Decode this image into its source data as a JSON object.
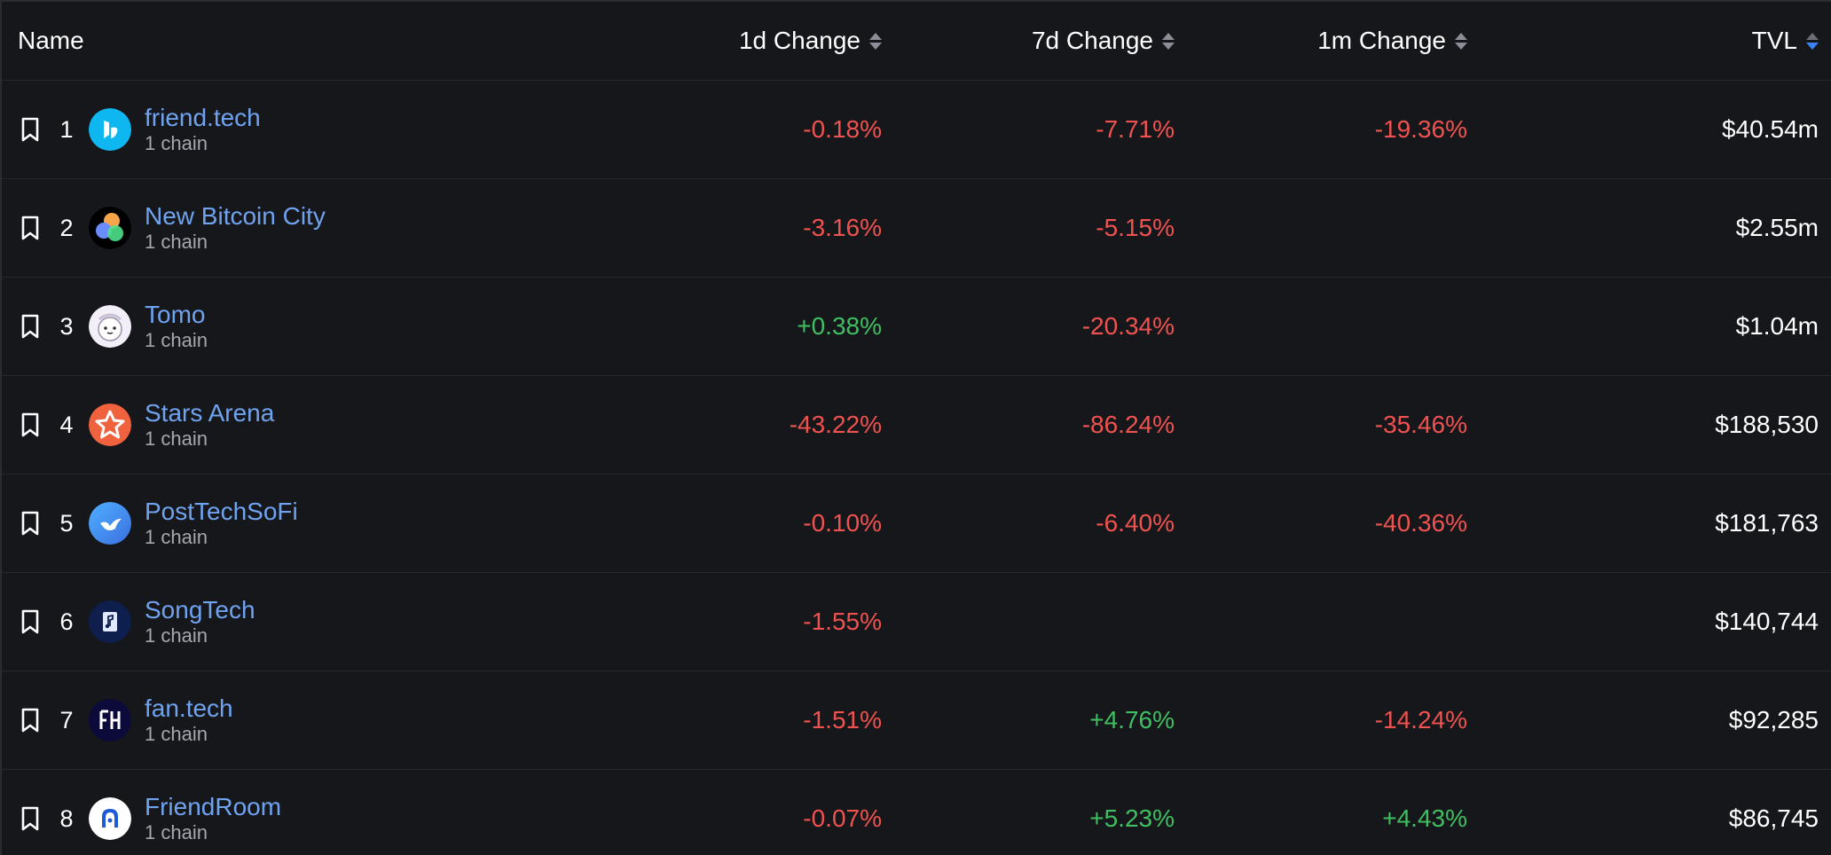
{
  "header": {
    "name": "Name",
    "change_1d": "1d Change",
    "change_7d": "7d Change",
    "change_1m": "1m Change",
    "tvl": "TVL"
  },
  "colors": {
    "background": "#16171b",
    "link": "#6fa3ef",
    "negative": "#f0524f",
    "positive": "#3fbf62",
    "sort_active": "#3b82f6"
  },
  "rows": [
    {
      "rank": "1",
      "name": "friend.tech",
      "chains": "1 chain",
      "change_1d": "-0.18%",
      "change_7d": "-7.71%",
      "change_1m": "-19.36%",
      "tvl": "$40.54m",
      "icon": "friendtech-logo-icon"
    },
    {
      "rank": "2",
      "name": "New Bitcoin City",
      "chains": "1 chain",
      "change_1d": "-3.16%",
      "change_7d": "-5.15%",
      "change_1m": "",
      "tvl": "$2.55m",
      "icon": "new-bitcoin-city-logo-icon"
    },
    {
      "rank": "3",
      "name": "Tomo",
      "chains": "1 chain",
      "change_1d": "+0.38%",
      "change_7d": "-20.34%",
      "change_1m": "",
      "tvl": "$1.04m",
      "icon": "tomo-logo-icon"
    },
    {
      "rank": "4",
      "name": "Stars Arena",
      "chains": "1 chain",
      "change_1d": "-43.22%",
      "change_7d": "-86.24%",
      "change_1m": "-35.46%",
      "tvl": "$188,530",
      "icon": "stars-arena-logo-icon"
    },
    {
      "rank": "5",
      "name": "PostTechSoFi",
      "chains": "1 chain",
      "change_1d": "-0.10%",
      "change_7d": "-6.40%",
      "change_1m": "-40.36%",
      "tvl": "$181,763",
      "icon": "posttechsofi-logo-icon"
    },
    {
      "rank": "6",
      "name": "SongTech",
      "chains": "1 chain",
      "change_1d": "-1.55%",
      "change_7d": "",
      "change_1m": "",
      "tvl": "$140,744",
      "icon": "songtech-logo-icon"
    },
    {
      "rank": "7",
      "name": "fan.tech",
      "chains": "1 chain",
      "change_1d": "-1.51%",
      "change_7d": "+4.76%",
      "change_1m": "-14.24%",
      "tvl": "$92,285",
      "icon": "fantech-logo-icon"
    },
    {
      "rank": "8",
      "name": "FriendRoom",
      "chains": "1 chain",
      "change_1d": "-0.07%",
      "change_7d": "+5.23%",
      "change_1m": "+4.43%",
      "tvl": "$86,745",
      "icon": "friendroom-logo-icon"
    }
  ]
}
